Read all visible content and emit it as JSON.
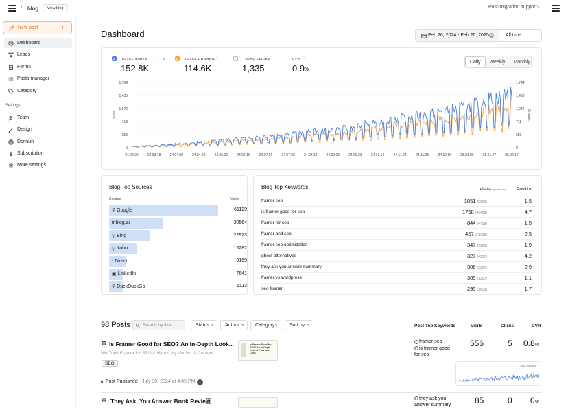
{
  "topbar": {
    "breadcrumb": "blog",
    "view_blog": "View blog",
    "support": "Post-migration support?"
  },
  "sidebar": {
    "new_post": "New post",
    "new_post_plus": "+",
    "items": [
      {
        "label": "Dashboard",
        "icon": "clock-icon"
      },
      {
        "label": "Leads",
        "icon": "filter-icon"
      },
      {
        "label": "Forms",
        "icon": "clipboard-icon"
      },
      {
        "label": "Posts manager",
        "icon": "list-icon"
      },
      {
        "label": "Category",
        "icon": "tag-icon"
      }
    ],
    "settings_heading": "Settings",
    "settings_items": [
      {
        "label": "Team",
        "icon": "users-icon"
      },
      {
        "label": "Design",
        "icon": "brush-icon"
      },
      {
        "label": "Domain",
        "icon": "globe-icon"
      },
      {
        "label": "Subscription",
        "icon": "dollar-icon"
      },
      {
        "label": "More settings",
        "icon": "gear-icon"
      }
    ]
  },
  "header": {
    "title": "Dashboard",
    "date_range": "Feb 26, 2024 - Feb 26, 2025",
    "all_time": "All time"
  },
  "kpis": [
    {
      "label": "TOTAL VISITS",
      "value": "152.8K",
      "checked": true,
      "check_color": "#4a7fd4"
    },
    {
      "label": "TOTAL ORGANIC",
      "value": "114.6K",
      "checked": true,
      "check_color": "#f0a24a"
    },
    {
      "label": "TOTAL CLICKS",
      "value": "1,335",
      "checked": false
    },
    {
      "label": "CVR",
      "value": "0.9",
      "unit": "%"
    }
  ],
  "granularity": {
    "options": [
      "Daily",
      "Weekly",
      "Monthly"
    ],
    "selected": "Daily"
  },
  "chart_data": {
    "type": "line",
    "ylabel": "Visits",
    "y2label": "Organic",
    "yticks": [
      "1,794",
      "1,435",
      "1,076",
      "718",
      "359",
      "0"
    ],
    "ylim": [
      0,
      1794
    ],
    "xticks": [
      "24.02.26",
      "24.03.18",
      "24.04.08",
      "24.04.29",
      "24.05.20",
      "24.06.10",
      "24.07.01",
      "24.07.22",
      "24.08.12",
      "24.09.02",
      "24.09.23",
      "24.10.14",
      "24.11.04",
      "24.11.25",
      "24.12.16",
      "25.01.06",
      "25.01.27",
      "25.02.17"
    ],
    "series": [
      {
        "name": "Visits",
        "color": "#4a7fd4"
      },
      {
        "name": "Organic",
        "color": "#f0a24a"
      }
    ],
    "weekly_visits": [
      40,
      50,
      60,
      70,
      80,
      90,
      110,
      120,
      130,
      150,
      170,
      190,
      210,
      230,
      250,
      270,
      290,
      300,
      320,
      340,
      360,
      380,
      400,
      420,
      440,
      460,
      480,
      500,
      520,
      540,
      560,
      600,
      650,
      700,
      720,
      760,
      800,
      820,
      850,
      880,
      900,
      940,
      980,
      1020,
      1060,
      1100,
      1150,
      1200,
      1300,
      1350,
      1400,
      1500,
      1600,
      1500
    ],
    "weekly_organic": [
      30,
      40,
      45,
      55,
      60,
      70,
      80,
      90,
      100,
      110,
      130,
      140,
      160,
      170,
      190,
      200,
      220,
      230,
      240,
      260,
      270,
      290,
      300,
      320,
      330,
      350,
      370,
      380,
      400,
      410,
      430,
      460,
      500,
      540,
      550,
      590,
      620,
      630,
      660,
      680,
      700,
      730,
      760,
      790,
      820,
      850,
      890,
      930,
      1010,
      1050,
      1090,
      1170,
      1250,
      1170
    ]
  },
  "sources": {
    "title": "Blog Top Sources",
    "col_source": "Source",
    "col_visits": "Visits",
    "items": [
      {
        "name": "Google",
        "visits": "61129",
        "value": 61129,
        "icon": "search-icon"
      },
      {
        "name": "inblog.ai",
        "visits": "30564",
        "value": 30564,
        "icon": ""
      },
      {
        "name": "Bing",
        "visits": "22923",
        "value": 22923,
        "icon": "search-icon"
      },
      {
        "name": "Yahoo",
        "visits": "15282",
        "value": 15282,
        "icon": "search-icon"
      },
      {
        "name": "Direct",
        "visits": "9169",
        "value": 9169,
        "icon": "cursor-icon"
      },
      {
        "name": "LinkedIn",
        "visits": "7641",
        "value": 7641,
        "icon": "linkedin-icon"
      },
      {
        "name": "DuckDuckGo",
        "visits": "6113",
        "value": 6113,
        "icon": "search-icon"
      }
    ]
  },
  "keywords": {
    "title": "Blog Top Keywords",
    "col_visits": "Visits",
    "col_impressions": "(impressions)",
    "col_position": "Position",
    "items": [
      {
        "kw": "framer seo",
        "visits": "1851",
        "impr": "(8060)",
        "pos": "1.5"
      },
      {
        "kw": "is framer good for seo",
        "visits": "1768",
        "impr": "(47418)",
        "pos": "4.7"
      },
      {
        "kw": "framer for seo",
        "visits": "844",
        "impr": "(4719)",
        "pos": "1.5"
      },
      {
        "kw": "framer and seo",
        "visits": "457",
        "impr": "(22599)",
        "pos": "2.5"
      },
      {
        "kw": "framer seo optimization",
        "visits": "347",
        "impr": "(3206)",
        "pos": "1.9"
      },
      {
        "kw": "ghost alternatives",
        "visits": "327",
        "impr": "(4957)",
        "pos": "4.2"
      },
      {
        "kw": "they ask you answer summary",
        "visits": "306",
        "impr": "(5257)",
        "pos": "2.9"
      },
      {
        "kw": "framer vs wordpress",
        "visits": "305",
        "impr": "(1257)",
        "pos": "1.1"
      },
      {
        "kw": "seo framer",
        "visits": "295",
        "impr": "(1603)",
        "pos": "1.7"
      }
    ]
  },
  "posts": {
    "count_label": "98 Posts",
    "search_placeholder": "Search by title",
    "filters": [
      "Status",
      "Author",
      "Category",
      "Sort by"
    ],
    "col_keywords": "Post Top Keywords",
    "col_visits": "Visits",
    "col_clicks": "Clicks",
    "col_cvr": "CVR",
    "see_details": "See details",
    "items": [
      {
        "title": "Is Framer Good for SEO? An In-Depth Look...",
        "excerpt": "We Tried Framer for SEO & Here's My Verdict: A Content...",
        "tag": "SEO",
        "status": "Post Published",
        "date": "July 30, 2024 at 4:45 PM",
        "keywords": [
          "framer seo",
          "is framer good for seo"
        ],
        "visits": "556",
        "clicks": "5",
        "cvr": "0.8",
        "thumb_text": "Is Framer Good for SEO? An In-Depth Look at Pros and Cons"
      },
      {
        "title": "They Ask, You Answer Book Review",
        "keywords": [
          "they ask you answer summary"
        ],
        "visits": "85",
        "clicks": "0",
        "cvr": "0"
      }
    ],
    "cvr_unit": "%"
  }
}
